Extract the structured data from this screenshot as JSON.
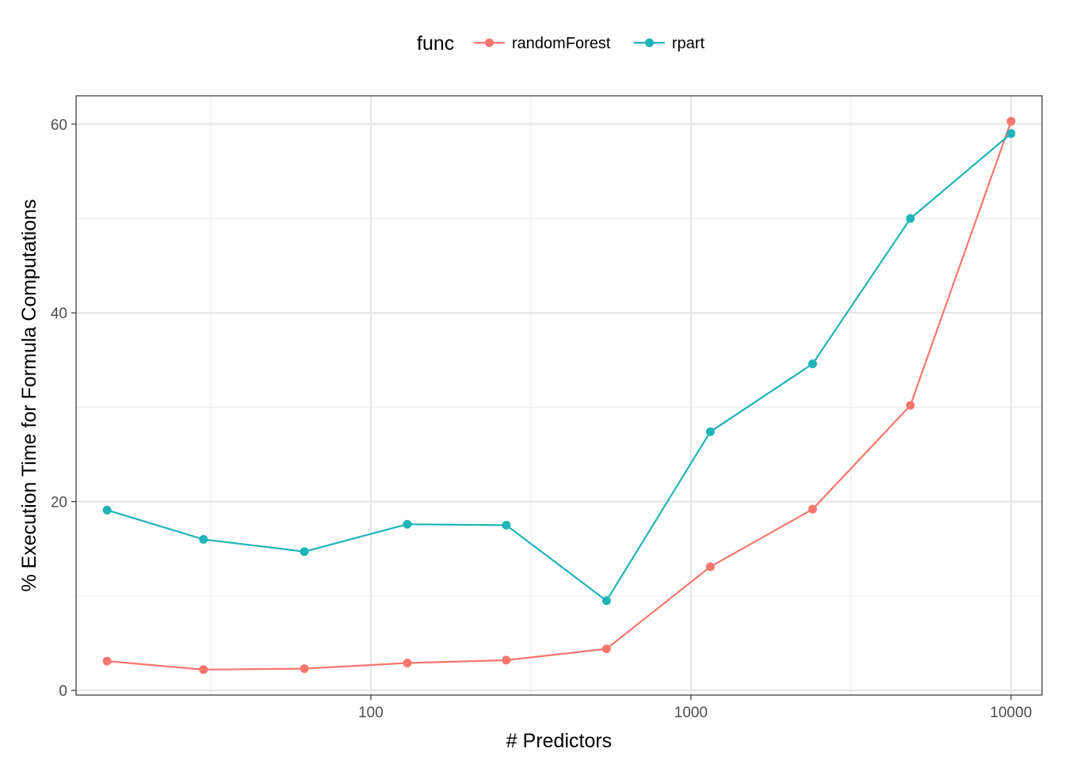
{
  "chart_data": {
    "type": "line",
    "xlabel": "# Predictors",
    "ylabel": "% Execution Time for Formula Computations",
    "x_scale": "log10",
    "xlim": [
      12,
      12500
    ],
    "ylim": [
      -0.5,
      63
    ],
    "x_ticks": [
      100,
      1000,
      10000
    ],
    "x_tick_labels": [
      "100",
      "1000",
      "10000"
    ],
    "y_ticks": [
      0,
      20,
      40,
      60
    ],
    "y_tick_labels": [
      "0",
      "20",
      "40",
      "60"
    ],
    "grid": true,
    "legend": {
      "title": "func",
      "position": "top"
    },
    "series": [
      {
        "name": "randomForest",
        "color": "#F8766D",
        "x": [
          15,
          30,
          62,
          130,
          265,
          545,
          1150,
          2400,
          4850,
          10000
        ],
        "y": [
          3.1,
          2.2,
          2.3,
          2.9,
          3.2,
          4.4,
          13.1,
          19.2,
          30.2,
          60.3
        ]
      },
      {
        "name": "rpart",
        "color": "#1FB4B8",
        "x": [
          15,
          30,
          62,
          130,
          265,
          545,
          1150,
          2400,
          4850,
          10000
        ],
        "y": [
          19.1,
          16.0,
          14.7,
          17.6,
          17.5,
          9.5,
          27.4,
          34.6,
          50.0,
          59.0
        ]
      }
    ]
  }
}
